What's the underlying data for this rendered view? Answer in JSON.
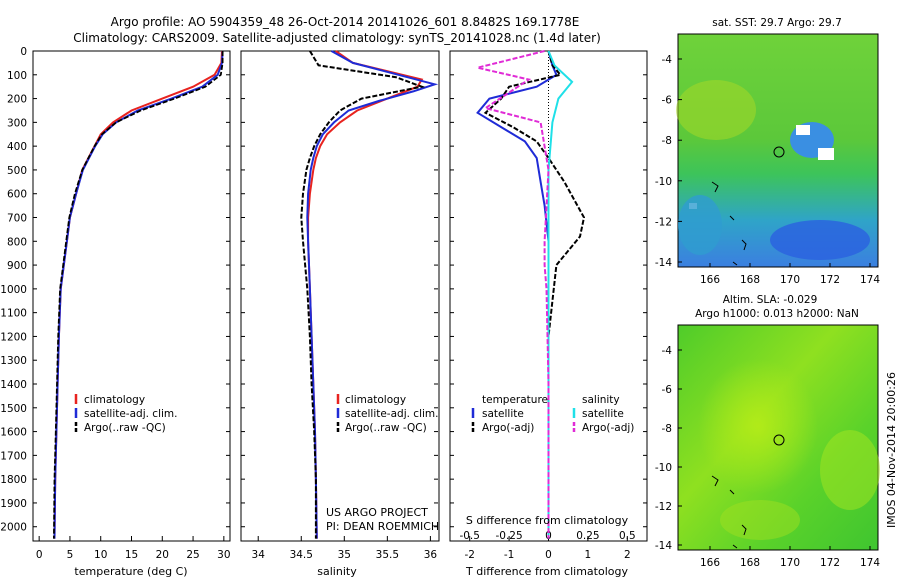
{
  "header": {
    "line1": "Argo profile: AO 5904359_48 26-Oct-2014 20141026_601 8.8482S 169.1778E",
    "line2": "Climatology: CARS2009. Satellite-adjusted climatology: synTS_20141028.nc (1.4d later)"
  },
  "colors": {
    "climatology": "#e8231f",
    "satellite": "#1f2bd6",
    "argo": "#000000",
    "sal_sat": "#1fe0e8",
    "sal_argo": "#e02bd6"
  },
  "depth_ticks": [
    0,
    100,
    200,
    300,
    400,
    500,
    600,
    700,
    800,
    900,
    1000,
    1100,
    1200,
    1300,
    1400,
    1500,
    1600,
    1700,
    1800,
    1900,
    2000
  ],
  "panel_temp": {
    "xlabel": "temperature (deg C)",
    "xticks": [
      "0",
      "5",
      "10",
      "15",
      "20",
      "25",
      "30"
    ],
    "legend": [
      "climatology",
      "satellite-adj. clim.",
      "Argo(..raw -QC)"
    ]
  },
  "panel_sal": {
    "xlabel": "salinity",
    "xticks": [
      "34",
      "34.5",
      "35",
      "35.5",
      "36"
    ],
    "legend": [
      "climatology",
      "satellite-adj. clim.",
      "Argo(..raw -QC)"
    ],
    "project": [
      "US ARGO PROJECT",
      "PI: DEAN ROEMMICH"
    ]
  },
  "panel_diff": {
    "xlabel": "T difference from climatology",
    "s_label": "S difference from climatology",
    "xticks": [
      "-2",
      "-1",
      "0",
      "1",
      "2"
    ],
    "sticks": [
      "-0.5",
      "-0.25",
      "0",
      "0.25",
      "0.5"
    ],
    "legend_t_title": "temperature",
    "legend_s_title": "salinity",
    "legend_t": [
      "satellite",
      "Argo(-adj)"
    ],
    "legend_s": [
      "satellite",
      "Argo(-adj)"
    ]
  },
  "map_sst": {
    "title": "sat. SST: 29.7  Argo: 29.7",
    "yticks": [
      "-4",
      "-6",
      "-8",
      "-10",
      "-12",
      "-14"
    ],
    "xticks": [
      "166",
      "168",
      "170",
      "172",
      "174"
    ]
  },
  "map_sla": {
    "title1": "Altim. SLA: -0.029",
    "title2": "Argo h1000: 0.013 h2000: NaN",
    "yticks": [
      "-4",
      "-6",
      "-8",
      "-10",
      "-12",
      "-14"
    ],
    "xticks": [
      "166",
      "168",
      "170",
      "172",
      "174"
    ]
  },
  "stamp": "IMOS 04-Nov-2014 20:00:26",
  "chart_data": [
    {
      "type": "line",
      "xlabel": "temperature (deg C)",
      "ylabel": "",
      "xlim": [
        -1,
        31
      ],
      "ylim": [
        2060,
        0
      ],
      "series": [
        {
          "name": "climatology",
          "x": [
            29.7,
            29.6,
            28.5,
            25.0,
            20.0,
            15.0,
            12.0,
            10.0,
            9.0,
            8.0,
            7.0,
            6.0,
            5.0,
            4.5,
            4.0,
            3.5,
            3.2,
            3.0,
            2.8,
            2.6,
            2.5
          ],
          "y": [
            0,
            50,
            100,
            150,
            200,
            250,
            300,
            350,
            400,
            450,
            500,
            600,
            700,
            800,
            900,
            1000,
            1200,
            1400,
            1600,
            1800,
            2050
          ]
        },
        {
          "name": "satellite-adj. clim.",
          "x": [
            29.8,
            29.7,
            29.0,
            26.5,
            21.5,
            16.0,
            12.5,
            10.3,
            9.1,
            8.1,
            7.1,
            6.0,
            5.0,
            4.5,
            4.0,
            3.5,
            3.2,
            3.0,
            2.8,
            2.6,
            2.5
          ],
          "y": [
            0,
            50,
            100,
            150,
            200,
            250,
            300,
            350,
            400,
            450,
            500,
            600,
            700,
            800,
            900,
            1000,
            1200,
            1400,
            1600,
            1800,
            2050
          ]
        },
        {
          "name": "Argo(..raw -QC)",
          "x": [
            29.8,
            29.8,
            29.5,
            27.0,
            22.0,
            16.5,
            12.5,
            10.2,
            9.0,
            8.0,
            7.0,
            5.8,
            4.9,
            4.4,
            3.9,
            3.4,
            3.1,
            2.9,
            2.7,
            2.5,
            2.4
          ],
          "y": [
            0,
            50,
            100,
            150,
            200,
            250,
            300,
            350,
            400,
            450,
            500,
            600,
            700,
            800,
            900,
            1000,
            1200,
            1400,
            1600,
            1800,
            2050
          ]
        }
      ]
    },
    {
      "type": "line",
      "xlabel": "salinity",
      "ylabel": "",
      "xlim": [
        33.8,
        36.1
      ],
      "ylim": [
        2060,
        0
      ],
      "series": [
        {
          "name": "climatology",
          "x": [
            34.9,
            35.1,
            35.9,
            35.85,
            35.5,
            35.15,
            34.95,
            34.8,
            34.72,
            34.67,
            34.64,
            34.6,
            34.58,
            34.58,
            34.6,
            34.62,
            34.64,
            34.66,
            34.67,
            34.68
          ],
          "y": [
            0,
            50,
            120,
            150,
            200,
            250,
            300,
            350,
            400,
            450,
            500,
            600,
            700,
            800,
            1000,
            1200,
            1400,
            1600,
            1800,
            2050
          ]
        },
        {
          "name": "satellite-adj. clim.",
          "x": [
            34.85,
            35.1,
            36.05,
            35.8,
            35.4,
            35.05,
            34.88,
            34.75,
            34.68,
            34.64,
            34.61,
            34.58,
            34.57,
            34.58,
            34.6,
            34.62,
            34.64,
            34.66,
            34.67,
            34.68
          ],
          "y": [
            0,
            50,
            140,
            170,
            210,
            250,
            300,
            350,
            400,
            450,
            500,
            600,
            700,
            800,
            1000,
            1200,
            1400,
            1600,
            1800,
            2050
          ]
        },
        {
          "name": "Argo(..raw -QC)",
          "x": [
            34.6,
            34.7,
            35.6,
            35.9,
            35.2,
            34.95,
            34.82,
            34.72,
            34.65,
            34.6,
            34.56,
            34.52,
            34.5,
            34.52,
            34.57,
            34.6,
            34.62,
            34.65,
            34.67,
            34.67
          ],
          "y": [
            0,
            60,
            110,
            150,
            200,
            250,
            300,
            350,
            400,
            450,
            500,
            600,
            700,
            800,
            1000,
            1200,
            1400,
            1600,
            1800,
            2050
          ]
        }
      ]
    },
    {
      "type": "line",
      "xlabel": "T difference from climatology",
      "ylabel": "",
      "xlim": [
        -2.5,
        2.5
      ],
      "ylim": [
        2060,
        0
      ],
      "series": [
        {
          "name": "temperature satellite",
          "x": [
            0.0,
            0.1,
            0.2,
            -0.3,
            -1.5,
            -1.8,
            -1.2,
            -0.6,
            -0.3,
            -0.2,
            -0.1,
            0.0,
            0.0,
            0.0,
            0.0,
            0.0
          ],
          "y": [
            0,
            60,
            100,
            150,
            200,
            260,
            320,
            380,
            450,
            550,
            650,
            800,
            1000,
            1400,
            1800,
            2050
          ]
        },
        {
          "name": "temperature Argo(-adj)",
          "x": [
            0.0,
            0.1,
            0.3,
            -1.0,
            -1.2,
            -1.6,
            -0.9,
            -0.3,
            0.0,
            0.4,
            0.9,
            0.8,
            0.2,
            0.0,
            0.0,
            0.0
          ],
          "y": [
            0,
            60,
            100,
            150,
            200,
            260,
            320,
            380,
            450,
            550,
            700,
            780,
            900,
            1200,
            1600,
            2050
          ]
        },
        {
          "name": "salinity satellite",
          "x": [
            0.0,
            0.15,
            0.6,
            0.25,
            0.1,
            0.0,
            0.0,
            0.0,
            0.0
          ],
          "y": [
            0,
            60,
            130,
            200,
            300,
            500,
            900,
            1400,
            2050
          ]
        },
        {
          "name": "salinity Argo(-adj)",
          "x": [
            -0.1,
            -1.8,
            -0.5,
            -1.6,
            -0.2,
            0.0,
            -0.1,
            -0.1,
            -0.05,
            0.0,
            0.0
          ],
          "y": [
            0,
            70,
            120,
            240,
            300,
            500,
            800,
            900,
            1000,
            1400,
            2050
          ]
        }
      ]
    }
  ]
}
